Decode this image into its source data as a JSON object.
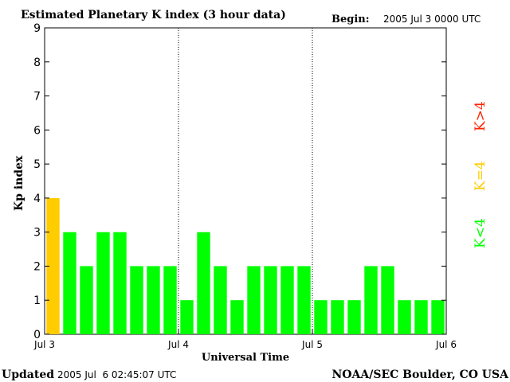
{
  "header": {
    "title": "Estimated Planetary K index (3 hour data)",
    "begin_label": "Begin:",
    "begin_value": "2005 Jul 3 0000 UTC"
  },
  "footer": {
    "updated_label": "Updated",
    "updated_value": "2005 Jul  6 02:45:07 UTC",
    "source": "NOAA/SEC Boulder, CO USA"
  },
  "legend": {
    "high": "K>4",
    "equal": "K=4",
    "low": "K<4"
  },
  "colors": {
    "low": "#00ff00",
    "equal": "#ffcc00",
    "high": "#ff2200",
    "axis": "#000000",
    "divider": "#000000"
  },
  "chart_data": {
    "type": "bar",
    "title": "Estimated Planetary K index (3 hour data)",
    "xlabel": "Universal Time",
    "ylabel": "Kp index",
    "ylim": [
      0,
      9
    ],
    "yticks": [
      0,
      1,
      2,
      3,
      4,
      5,
      6,
      7,
      8,
      9
    ],
    "xticks": [
      "Jul 3",
      "Jul 4",
      "Jul 5",
      "Jul 6"
    ],
    "grid": false,
    "day_dividers": true,
    "bins_per_day": 8,
    "values": [
      4,
      3,
      2,
      3,
      3,
      2,
      2,
      2,
      1,
      3,
      2,
      1,
      2,
      2,
      2,
      2,
      1,
      1,
      1,
      2,
      2,
      1,
      1,
      1
    ]
  }
}
